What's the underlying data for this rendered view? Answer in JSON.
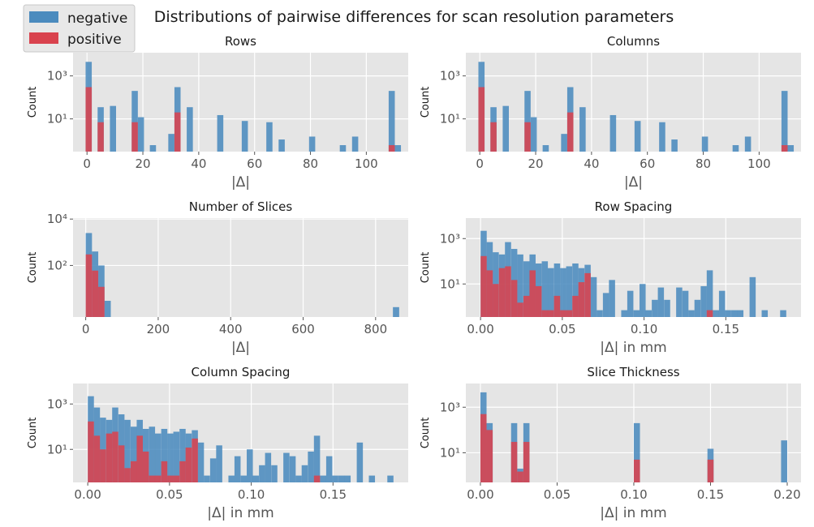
{
  "figure": {
    "suptitle": "Distributions of pairwise differences for scan resolution parameters",
    "legend": {
      "placement": "top-left",
      "entries": [
        {
          "label": "negative",
          "color": "#4b8bbe"
        },
        {
          "label": "positive",
          "color": "#d9434e"
        }
      ]
    }
  },
  "colors": {
    "negative": "#4b8bbe",
    "positive": "#d9434e",
    "panel_bg": "#e5e5e5",
    "grid": "#ffffff"
  },
  "chart_data": [
    {
      "type": "bar",
      "title": "Rows",
      "xlabel": "|Δ|",
      "ylabel": "Count",
      "yscale": "log",
      "xlim": [
        -5,
        115
      ],
      "ylim": [
        0.3,
        12000
      ],
      "grid": true,
      "xticks": [
        0,
        20,
        40,
        60,
        80,
        100
      ],
      "xticklabels": [
        "0",
        "20",
        "40",
        "60",
        "80",
        "100"
      ],
      "yticks": [
        10,
        1000
      ],
      "yticklabels": [
        "10¹",
        "10³"
      ],
      "bin_width": 2.2,
      "negative": [
        [
          0.6,
          4500
        ],
        [
          4.9,
          35
        ],
        [
          9.3,
          40
        ],
        [
          17.1,
          200
        ],
        [
          19.3,
          12
        ],
        [
          23.6,
          0.6
        ],
        [
          30.2,
          2
        ],
        [
          32.4,
          300
        ],
        [
          36.8,
          35
        ],
        [
          47.7,
          15
        ],
        [
          56.5,
          8
        ],
        [
          65.3,
          7
        ],
        [
          69.7,
          1.1
        ],
        [
          80.6,
          1.5
        ],
        [
          91.6,
          0.6
        ],
        [
          96.0,
          1.5
        ],
        [
          109.1,
          200
        ],
        [
          111.3,
          0.6
        ]
      ],
      "positive": [
        [
          0.6,
          300
        ],
        [
          4.9,
          7
        ],
        [
          17.1,
          7
        ],
        [
          32.4,
          20
        ],
        [
          109.1,
          0.6
        ]
      ]
    },
    {
      "type": "bar",
      "title": "Columns",
      "xlabel": "|Δ|",
      "ylabel": "Count",
      "yscale": "log",
      "xlim": [
        -5,
        115
      ],
      "ylim": [
        0.3,
        12000
      ],
      "grid": true,
      "xticks": [
        0,
        20,
        40,
        60,
        80,
        100
      ],
      "xticklabels": [
        "0",
        "20",
        "40",
        "60",
        "80",
        "100"
      ],
      "yticks": [
        10,
        1000
      ],
      "yticklabels": [
        "10¹",
        "10³"
      ],
      "bin_width": 2.2,
      "negative": [
        [
          0.6,
          4500
        ],
        [
          4.9,
          35
        ],
        [
          9.3,
          40
        ],
        [
          17.1,
          200
        ],
        [
          19.3,
          12
        ],
        [
          23.6,
          0.6
        ],
        [
          30.2,
          2
        ],
        [
          32.4,
          300
        ],
        [
          36.8,
          35
        ],
        [
          47.7,
          15
        ],
        [
          56.5,
          8
        ],
        [
          65.3,
          7
        ],
        [
          69.7,
          1.1
        ],
        [
          80.6,
          1.5
        ],
        [
          91.6,
          0.6
        ],
        [
          96.0,
          1.5
        ],
        [
          109.1,
          200
        ],
        [
          111.3,
          0.6
        ]
      ],
      "positive": [
        [
          0.6,
          300
        ],
        [
          4.9,
          7
        ],
        [
          17.1,
          7
        ],
        [
          32.4,
          20
        ],
        [
          109.1,
          0.6
        ]
      ]
    },
    {
      "type": "bar",
      "title": "Number of Slices",
      "xlabel": "|Δ|",
      "ylabel": "Count",
      "yscale": "log",
      "xlim": [
        -35,
        890
      ],
      "ylim": [
        0.6,
        11000
      ],
      "grid": true,
      "xticks": [
        0,
        200,
        400,
        600,
        800
      ],
      "xticklabels": [
        "0",
        "200",
        "400",
        "600",
        "800"
      ],
      "yticks": [
        100,
        10000
      ],
      "yticklabels": [
        "10²",
        "10⁴"
      ],
      "bin_width": 17.3,
      "negative": [
        [
          8.6,
          2500
        ],
        [
          25.9,
          400
        ],
        [
          43.2,
          100
        ],
        [
          60.5,
          3
        ],
        [
          856.4,
          1.6
        ]
      ],
      "positive": [
        [
          8.6,
          300
        ],
        [
          25.9,
          60
        ],
        [
          43.2,
          12
        ]
      ]
    },
    {
      "type": "bar",
      "title": "Row Spacing",
      "xlabel": "|Δ| in mm",
      "ylabel": "Count",
      "yscale": "log",
      "xlim": [
        -0.009,
        0.196
      ],
      "ylim": [
        0.35,
        8000
      ],
      "grid": true,
      "xticks": [
        0.0,
        0.05,
        0.1,
        0.15
      ],
      "xticklabels": [
        "0.00",
        "0.05",
        "0.10",
        "0.15"
      ],
      "yticks": [
        10,
        1000
      ],
      "yticklabels": [
        "10¹",
        "10³"
      ],
      "bin_width": 0.00374,
      "negative": [
        [
          0.0019,
          2200
        ],
        [
          0.0056,
          700
        ],
        [
          0.0093,
          250
        ],
        [
          0.0131,
          200
        ],
        [
          0.0168,
          700
        ],
        [
          0.0206,
          350
        ],
        [
          0.0243,
          200
        ],
        [
          0.0281,
          100
        ],
        [
          0.0318,
          200
        ],
        [
          0.0355,
          80
        ],
        [
          0.0393,
          100
        ],
        [
          0.043,
          50
        ],
        [
          0.0468,
          80
        ],
        [
          0.0505,
          50
        ],
        [
          0.0542,
          60
        ],
        [
          0.058,
          80
        ],
        [
          0.0617,
          50
        ],
        [
          0.0655,
          70
        ],
        [
          0.0692,
          20
        ],
        [
          0.0729,
          0.7
        ],
        [
          0.0767,
          4
        ],
        [
          0.0804,
          15
        ],
        [
          0.0879,
          0.7
        ],
        [
          0.0916,
          5
        ],
        [
          0.0954,
          0.7
        ],
        [
          0.0991,
          10
        ],
        [
          0.1028,
          0.7
        ],
        [
          0.1066,
          2
        ],
        [
          0.1103,
          7
        ],
        [
          0.1141,
          2
        ],
        [
          0.1215,
          7
        ],
        [
          0.1253,
          5
        ],
        [
          0.129,
          0.7
        ],
        [
          0.1327,
          2
        ],
        [
          0.1365,
          8
        ],
        [
          0.1402,
          40
        ],
        [
          0.144,
          0.7
        ],
        [
          0.1477,
          5
        ],
        [
          0.1514,
          0.7
        ],
        [
          0.1552,
          0.7
        ],
        [
          0.1589,
          0.7
        ],
        [
          0.1664,
          20
        ],
        [
          0.1738,
          0.7
        ],
        [
          0.1851,
          0.7
        ]
      ],
      "positive": [
        [
          0.0019,
          170
        ],
        [
          0.0056,
          40
        ],
        [
          0.0093,
          10
        ],
        [
          0.0131,
          50
        ],
        [
          0.0168,
          60
        ],
        [
          0.0206,
          15
        ],
        [
          0.0243,
          1.5
        ],
        [
          0.0281,
          3
        ],
        [
          0.0318,
          40
        ],
        [
          0.0355,
          8
        ],
        [
          0.0393,
          0.7
        ],
        [
          0.043,
          0.7
        ],
        [
          0.0468,
          3
        ],
        [
          0.0505,
          0.7
        ],
        [
          0.0542,
          0.7
        ],
        [
          0.058,
          3
        ],
        [
          0.0617,
          12
        ],
        [
          0.0655,
          30
        ],
        [
          0.1402,
          0.7
        ]
      ]
    },
    {
      "type": "bar",
      "title": "Column Spacing",
      "xlabel": "|Δ| in mm",
      "ylabel": "Count",
      "yscale": "log",
      "xlim": [
        -0.009,
        0.196
      ],
      "ylim": [
        0.35,
        8000
      ],
      "grid": true,
      "xticks": [
        0.0,
        0.05,
        0.1,
        0.15
      ],
      "xticklabels": [
        "0.00",
        "0.05",
        "0.10",
        "0.15"
      ],
      "yticks": [
        10,
        1000
      ],
      "yticklabels": [
        "10¹",
        "10³"
      ],
      "bin_width": 0.00374,
      "negative": [
        [
          0.0019,
          2200
        ],
        [
          0.0056,
          700
        ],
        [
          0.0093,
          250
        ],
        [
          0.0131,
          200
        ],
        [
          0.0168,
          700
        ],
        [
          0.0206,
          350
        ],
        [
          0.0243,
          200
        ],
        [
          0.0281,
          100
        ],
        [
          0.0318,
          200
        ],
        [
          0.0355,
          80
        ],
        [
          0.0393,
          100
        ],
        [
          0.043,
          50
        ],
        [
          0.0468,
          80
        ],
        [
          0.0505,
          50
        ],
        [
          0.0542,
          60
        ],
        [
          0.058,
          80
        ],
        [
          0.0617,
          50
        ],
        [
          0.0655,
          70
        ],
        [
          0.0692,
          20
        ],
        [
          0.0729,
          0.7
        ],
        [
          0.0767,
          4
        ],
        [
          0.0804,
          15
        ],
        [
          0.0879,
          0.7
        ],
        [
          0.0916,
          5
        ],
        [
          0.0954,
          0.7
        ],
        [
          0.0991,
          10
        ],
        [
          0.1028,
          0.7
        ],
        [
          0.1066,
          2
        ],
        [
          0.1103,
          7
        ],
        [
          0.1141,
          2
        ],
        [
          0.1215,
          7
        ],
        [
          0.1253,
          5
        ],
        [
          0.129,
          0.7
        ],
        [
          0.1327,
          2
        ],
        [
          0.1365,
          8
        ],
        [
          0.1402,
          40
        ],
        [
          0.144,
          0.7
        ],
        [
          0.1477,
          5
        ],
        [
          0.1514,
          0.7
        ],
        [
          0.1552,
          0.7
        ],
        [
          0.1589,
          0.7
        ],
        [
          0.1664,
          20
        ],
        [
          0.1738,
          0.7
        ],
        [
          0.1851,
          0.7
        ]
      ],
      "positive": [
        [
          0.0019,
          170
        ],
        [
          0.0056,
          40
        ],
        [
          0.0093,
          10
        ],
        [
          0.0131,
          50
        ],
        [
          0.0168,
          60
        ],
        [
          0.0206,
          15
        ],
        [
          0.0243,
          1.5
        ],
        [
          0.0281,
          3
        ],
        [
          0.0318,
          40
        ],
        [
          0.0355,
          8
        ],
        [
          0.0393,
          0.7
        ],
        [
          0.043,
          0.7
        ],
        [
          0.0468,
          3
        ],
        [
          0.0505,
          0.7
        ],
        [
          0.0542,
          0.7
        ],
        [
          0.058,
          3
        ],
        [
          0.0617,
          12
        ],
        [
          0.0655,
          30
        ],
        [
          0.1402,
          0.7
        ]
      ]
    },
    {
      "type": "bar",
      "title": "Slice Thickness",
      "xlabel": "|Δ| in mm",
      "ylabel": "Count",
      "yscale": "log",
      "xlim": [
        -0.0095,
        0.209
      ],
      "ylim": [
        0.5,
        11000
      ],
      "grid": true,
      "xticks": [
        0.0,
        0.05,
        0.1,
        0.15,
        0.2
      ],
      "xticklabels": [
        "0.00",
        "0.05",
        "0.10",
        "0.15",
        "0.20"
      ],
      "yticks": [
        10,
        1000
      ],
      "yticklabels": [
        "10¹",
        "10³"
      ],
      "bin_width": 0.004,
      "negative": [
        [
          0.002,
          4500
        ],
        [
          0.006,
          200
        ],
        [
          0.022,
          200
        ],
        [
          0.026,
          2
        ],
        [
          0.03,
          200
        ],
        [
          0.102,
          200
        ],
        [
          0.15,
          15
        ],
        [
          0.198,
          35
        ]
      ],
      "positive": [
        [
          0.002,
          500
        ],
        [
          0.006,
          100
        ],
        [
          0.022,
          30
        ],
        [
          0.026,
          1.5
        ],
        [
          0.03,
          30
        ],
        [
          0.102,
          5
        ],
        [
          0.15,
          5
        ]
      ]
    }
  ]
}
